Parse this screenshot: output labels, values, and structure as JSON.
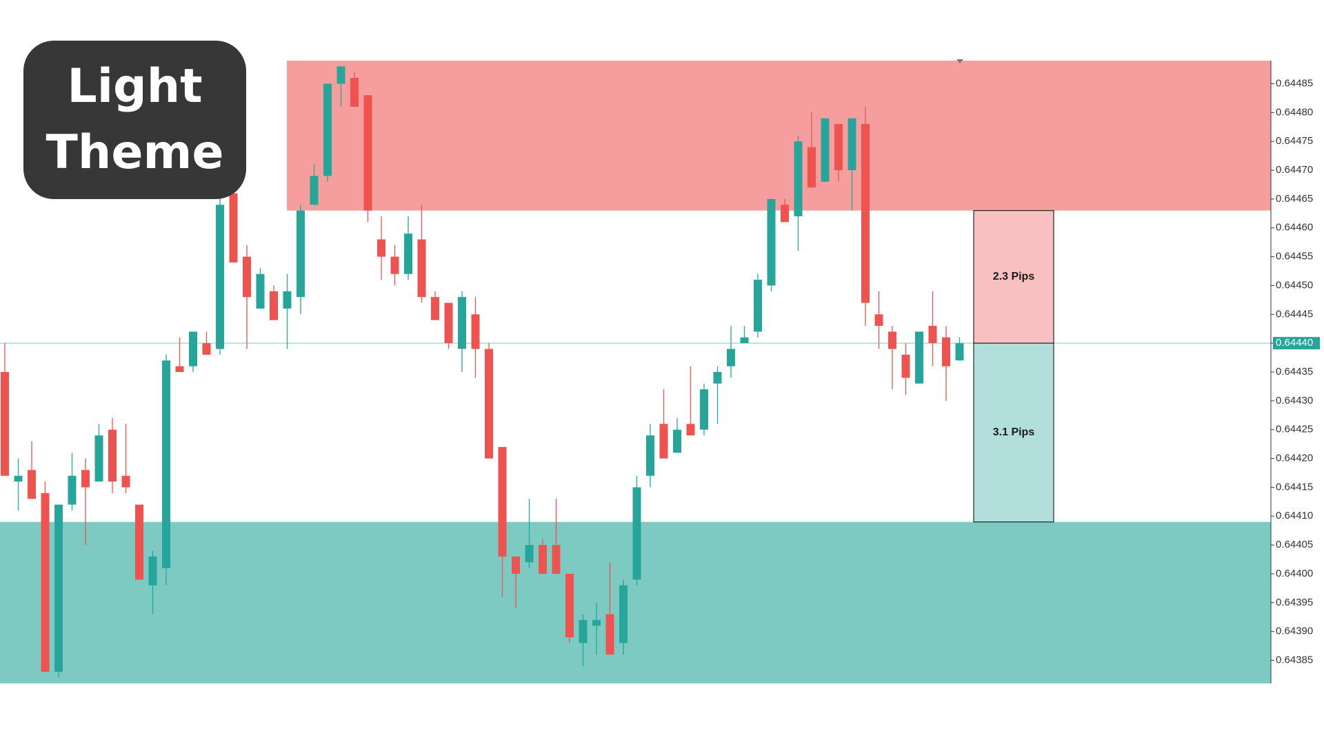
{
  "chart_data": {
    "type": "candlestick",
    "badge": "Light Theme",
    "up_color": "#26a69a",
    "down_color": "#ef5350",
    "ylim": [
      0.64381,
      0.64489
    ],
    "yticks": [
      0.64385,
      {
        "value": 0.6439,
        "label": "0.64390"
      },
      0.64395,
      {
        "value": 0.644,
        "label": "0.64400"
      },
      0.64405,
      {
        "value": 0.6441,
        "label": "0.64410"
      },
      0.64415,
      {
        "value": 0.6442,
        "label": "0.64420"
      },
      0.64425,
      {
        "value": 0.6443,
        "label": "0.64430"
      },
      0.64435,
      {
        "value": 0.6444,
        "label": "0.64440"
      },
      0.64445,
      {
        "value": 0.6445,
        "label": "0.64450"
      },
      0.64455,
      {
        "value": 0.6446,
        "label": "0.64460"
      },
      0.64465,
      {
        "value": 0.6447,
        "label": "0.64470"
      },
      0.64475,
      {
        "value": 0.6448,
        "label": "0.64480"
      },
      0.64485
    ],
    "current_price": {
      "value": 0.6444,
      "label": "0.64440",
      "color": "#26a69a"
    },
    "zones": [
      {
        "from": 0.64463,
        "to": 0.64489,
        "color": "#f59e9d"
      },
      {
        "from": 0.64381,
        "to": 0.64409,
        "color": "#7ccac1"
      }
    ],
    "measure": [
      {
        "from": 0.6444,
        "to": 0.64463,
        "label": "2.3 Pips",
        "color": "#f8c0c0"
      },
      {
        "from": 0.64409,
        "to": 0.6444,
        "label": "3.1 Pips",
        "color": "#b2dfdb"
      }
    ],
    "open": [
      0.64435,
      0.64416,
      0.64418,
      0.64414,
      0.64383,
      0.64412,
      0.64418,
      0.64416,
      0.64425,
      0.64417,
      0.64412,
      0.64398,
      0.64401,
      0.64436,
      0.64436,
      0.6444,
      0.64439,
      0.64466,
      0.64455,
      0.64446,
      0.64449,
      0.64446,
      0.64448,
      0.64464,
      0.64469,
      0.64485,
      0.64486,
      0.64483,
      0.64458,
      0.64455,
      0.64452,
      0.64458,
      0.64448,
      0.64447,
      0.64439,
      0.64445,
      0.64439,
      0.64422,
      0.64403,
      0.64402,
      0.64405,
      0.64405,
      0.644,
      0.64388,
      0.64391,
      0.64393,
      0.64388,
      0.64399,
      0.64417,
      0.64426,
      0.64421,
      0.64426,
      0.64425,
      0.64433,
      0.64436,
      0.6444,
      0.64442,
      0.6445,
      0.64464,
      0.64462,
      0.64474,
      0.64468,
      0.64478,
      0.6447,
      0.64478,
      0.64445,
      0.64442,
      0.64438,
      0.64433,
      0.64443,
      0.64441,
      0.64437
    ],
    "high": [
      0.6444,
      0.6442,
      0.64423,
      0.64416,
      0.64412,
      0.64421,
      0.6442,
      0.64426,
      0.64427,
      0.64426,
      0.64412,
      0.64404,
      0.64438,
      0.64441,
      0.64442,
      0.64442,
      0.64466,
      0.64466,
      0.64457,
      0.64453,
      0.6445,
      0.64452,
      0.64464,
      0.64471,
      0.64485,
      0.64488,
      0.64487,
      0.64483,
      0.64462,
      0.64457,
      0.64462,
      0.64464,
      0.64449,
      0.64447,
      0.64449,
      0.64448,
      0.6444,
      0.64422,
      0.64403,
      0.64413,
      0.64406,
      0.64413,
      0.644,
      0.64393,
      0.64395,
      0.64402,
      0.64399,
      0.64417,
      0.64426,
      0.64432,
      0.64427,
      0.64436,
      0.64433,
      0.64436,
      0.64443,
      0.64443,
      0.64452,
      0.64465,
      0.64465,
      0.64476,
      0.6448,
      0.64479,
      0.64478,
      0.64479,
      0.64481,
      0.64449,
      0.64443,
      0.6444,
      0.64442,
      0.64449,
      0.64443,
      0.64441
    ],
    "low": [
      0.64417,
      0.64411,
      0.64413,
      0.64383,
      0.64382,
      0.64411,
      0.64405,
      0.64416,
      0.64414,
      0.64414,
      0.64399,
      0.64393,
      0.64398,
      0.64435,
      0.64435,
      0.64438,
      0.64438,
      0.64454,
      0.64439,
      0.64446,
      0.64444,
      0.64439,
      0.64445,
      0.64464,
      0.64468,
      0.64481,
      0.64481,
      0.64461,
      0.64451,
      0.6445,
      0.64451,
      0.64447,
      0.64444,
      0.64439,
      0.64435,
      0.64434,
      0.6442,
      0.64396,
      0.64394,
      0.64401,
      0.644,
      0.644,
      0.64388,
      0.64384,
      0.64386,
      0.64386,
      0.64386,
      0.64398,
      0.64415,
      0.6442,
      0.64421,
      0.64424,
      0.64424,
      0.64426,
      0.64434,
      0.6444,
      0.64441,
      0.64449,
      0.64461,
      0.64456,
      0.64467,
      0.64468,
      0.64468,
      0.64463,
      0.64443,
      0.64439,
      0.64432,
      0.64431,
      0.64433,
      0.64436,
      0.6443,
      0.64437
    ],
    "close": [
      0.64417,
      0.64417,
      0.64413,
      0.64383,
      0.64412,
      0.64417,
      0.64415,
      0.64424,
      0.64416,
      0.64415,
      0.64399,
      0.64403,
      0.64437,
      0.64435,
      0.64442,
      0.64438,
      0.64464,
      0.64454,
      0.64448,
      0.64452,
      0.64444,
      0.64449,
      0.64463,
      0.64469,
      0.64485,
      0.64488,
      0.64481,
      0.64463,
      0.64455,
      0.64452,
      0.64459,
      0.64448,
      0.64444,
      0.6444,
      0.64448,
      0.64439,
      0.6442,
      0.64403,
      0.644,
      0.64405,
      0.644,
      0.644,
      0.64389,
      0.64392,
      0.64392,
      0.64386,
      0.64398,
      0.64415,
      0.64424,
      0.6442,
      0.64425,
      0.64424,
      0.64432,
      0.64435,
      0.64439,
      0.64441,
      0.64451,
      0.64465,
      0.64461,
      0.64475,
      0.64467,
      0.64479,
      0.6447,
      0.64479,
      0.64447,
      0.64443,
      0.64439,
      0.64434,
      0.64442,
      0.6444,
      0.64436,
      0.6444
    ]
  }
}
